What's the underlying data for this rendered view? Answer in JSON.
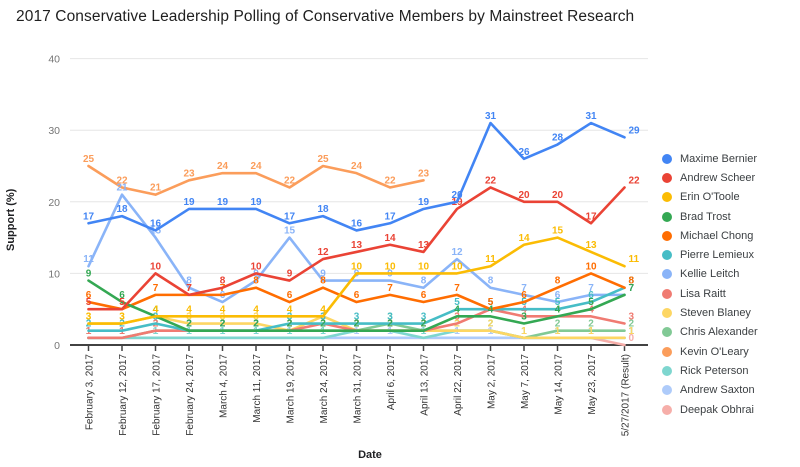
{
  "title": "2017 Conservative Leadership Polling of Conservative Members by Mainstreet Research",
  "y_axis": {
    "title": "Support (%)",
    "ticks": [
      0,
      10,
      20,
      30,
      40
    ]
  },
  "x_axis": {
    "title": "Date"
  },
  "chart_data": {
    "type": "line",
    "title": "2017 Conservative Leadership Polling of Conservative Members by Mainstreet Research",
    "xlabel": "Date",
    "ylabel": "Support (%)",
    "ylim": [
      0,
      40
    ],
    "grid": "horizontal",
    "legend_position": "right",
    "point_labels": true,
    "categories": [
      "February 3, 2017",
      "February 12, 2017",
      "February 17, 2017",
      "February 24, 2017",
      "March 4, 2017",
      "March 11, 2017",
      "March 19, 2017",
      "March 24, 2017",
      "March 31, 2017",
      "April 6, 2017",
      "April 13, 2017",
      "April 22, 2017",
      "May 2, 2017",
      "May 7, 2017",
      "May 14, 2017",
      "May 23, 2017",
      "5/27/2017 (Result)"
    ],
    "series": [
      {
        "name": "Maxime Bernier",
        "color": "#4285F4",
        "values": [
          17,
          18,
          16,
          19,
          19,
          19,
          17,
          18,
          16,
          17,
          19,
          20,
          31,
          26,
          28,
          31,
          29
        ]
      },
      {
        "name": "Andrew Scheer",
        "color": "#EA4335",
        "values": [
          5,
          5,
          10,
          7,
          8,
          10,
          9,
          12,
          13,
          14,
          13,
          19,
          22,
          20,
          20,
          17,
          22
        ]
      },
      {
        "name": "Erin O'Toole",
        "color": "#FBBC04",
        "values": [
          3,
          3,
          4,
          4,
          4,
          4,
          4,
          4,
          10,
          10,
          10,
          10,
          11,
          14,
          15,
          13,
          11
        ]
      },
      {
        "name": "Brad Trost",
        "color": "#34A853",
        "values": [
          9,
          6,
          4,
          2,
          2,
          2,
          2,
          2,
          2,
          2,
          2,
          4,
          4,
          3,
          4,
          5,
          7
        ]
      },
      {
        "name": "Michael Chong",
        "color": "#FF6D01",
        "values": [
          6,
          5,
          7,
          7,
          7,
          8,
          6,
          8,
          6,
          7,
          6,
          7,
          5,
          6,
          8,
          10,
          8
        ]
      },
      {
        "name": "Pierre Lemieux",
        "color": "#46BDC6",
        "values": [
          2,
          2,
          3,
          2,
          2,
          2,
          3,
          3,
          3,
          3,
          3,
          5,
          5,
          5,
          5,
          6,
          8
        ]
      },
      {
        "name": "Kellie Leitch",
        "color": "#8AB4F8",
        "values": [
          11,
          21,
          15,
          8,
          6,
          9,
          15,
          9,
          9,
          9,
          8,
          12,
          8,
          7,
          6,
          7,
          7
        ]
      },
      {
        "name": "Lisa Raitt",
        "color": "#F07B72",
        "values": [
          1,
          1,
          2,
          2,
          2,
          2,
          2,
          3,
          2,
          2,
          2,
          3,
          5,
          4,
          4,
          4,
          3
        ]
      },
      {
        "name": "Steven Blaney",
        "color": "#FDD663",
        "values": [
          3,
          3,
          4,
          3,
          3,
          3,
          2,
          4,
          2,
          2,
          2,
          2,
          2,
          1,
          1,
          1,
          1
        ]
      },
      {
        "name": "Chris Alexander",
        "color": "#81C995",
        "values": [
          1,
          1,
          2,
          2,
          2,
          2,
          2,
          2,
          2,
          3,
          2,
          2,
          2,
          1,
          2,
          2,
          2
        ]
      },
      {
        "name": "Kevin O'Leary",
        "color": "#FB9D5B",
        "values": [
          25,
          22,
          21,
          23,
          24,
          24,
          22,
          25,
          24,
          22,
          23,
          null,
          null,
          null,
          null,
          null,
          null
        ]
      },
      {
        "name": "Rick Peterson",
        "color": "#7ED6CF",
        "values": [
          1,
          1,
          1,
          1,
          1,
          1,
          1,
          1,
          2,
          2,
          1,
          2,
          2,
          1,
          1,
          1,
          1
        ]
      },
      {
        "name": "Andrew Saxton",
        "color": "#AECBFA",
        "values": [
          1,
          1,
          1,
          1,
          1,
          1,
          1,
          1,
          1,
          1,
          1,
          1,
          1,
          1,
          1,
          1,
          1
        ]
      },
      {
        "name": "Deepak Obhrai",
        "color": "#F6AEA9",
        "values": [
          1,
          1,
          1,
          1,
          1,
          1,
          1,
          1,
          1,
          1,
          1,
          1,
          1,
          1,
          1,
          1,
          0
        ]
      }
    ]
  }
}
